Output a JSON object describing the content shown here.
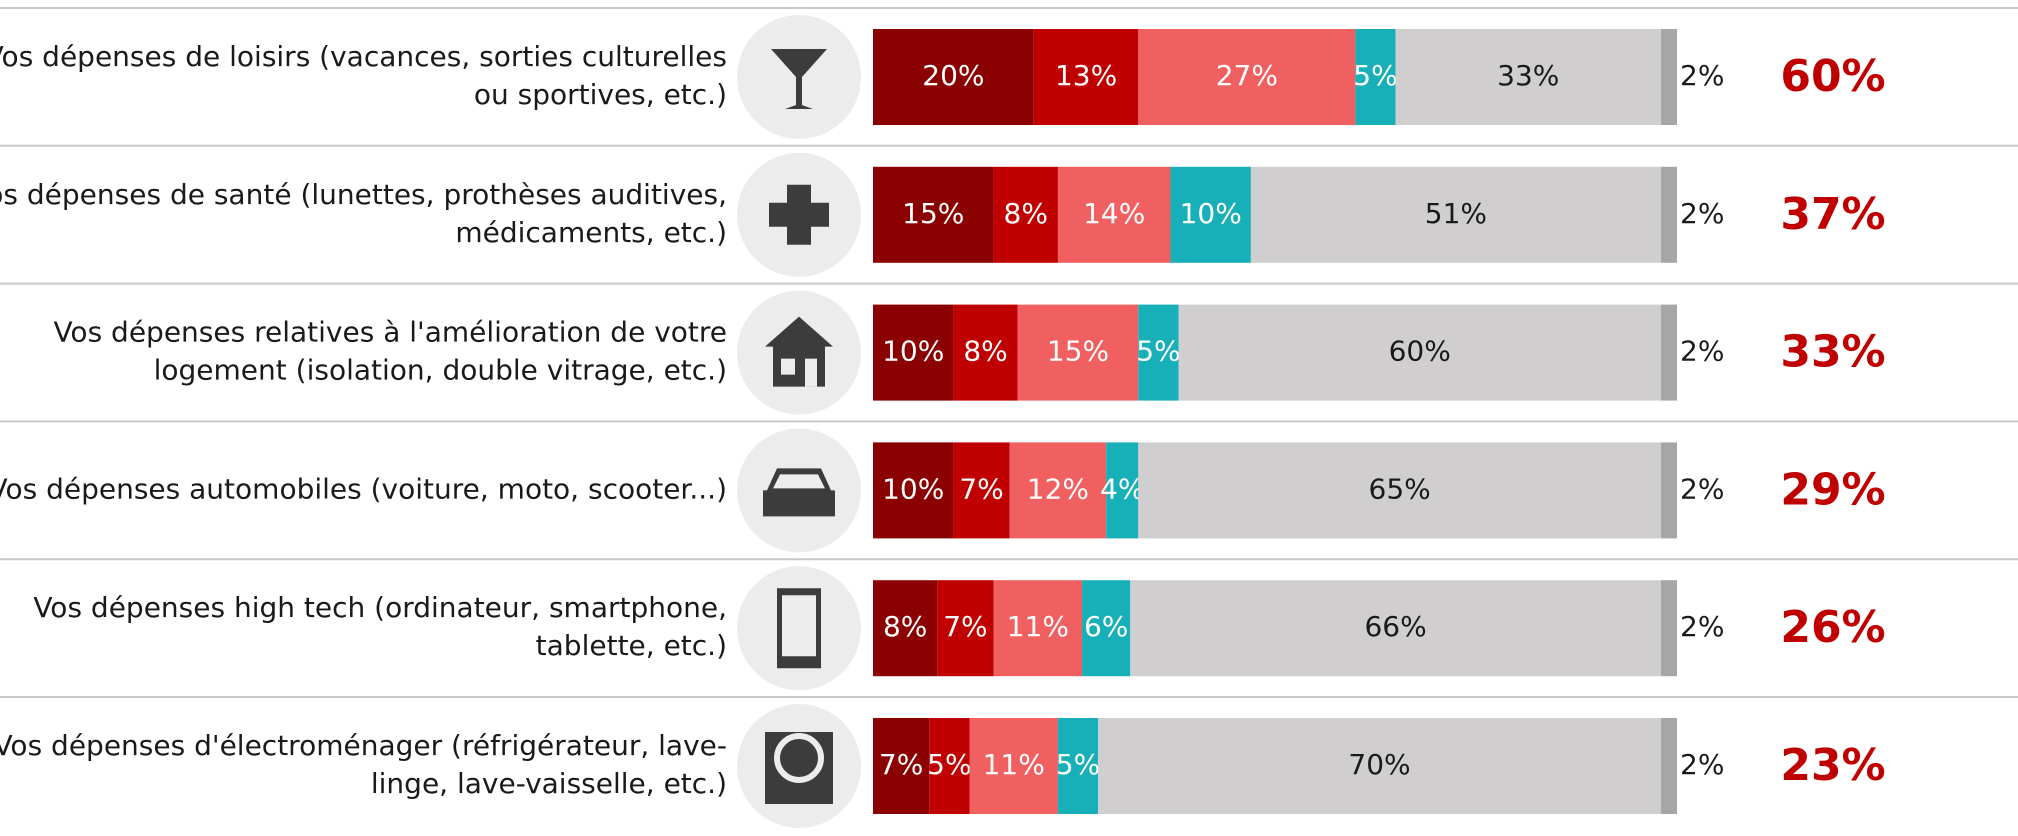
{
  "chart_data": {
    "type": "stacked-bar-horizontal",
    "categories": [
      "Vos dépenses de loisirs (vacances, sorties culturelles\nou sportives, etc.)",
      "Vos dépenses de santé (lunettes, prothèses auditives,\nmédicaments, etc.)",
      "Vos dépenses relatives à l'amélioration de votre\nlogement (isolation, double vitrage, etc.)",
      "Vos dépenses automobiles (voiture, moto, scooter...)",
      "Vos dépenses high tech (ordinateur, smartphone,\ntablette, etc.)",
      "Vos dépenses d'électroménager (réfrigérateur, lave-\nlinge, lave-vaisselle, etc.)"
    ],
    "xlim": [
      0,
      100
    ],
    "series": [
      {
        "color": "#8b0000",
        "values": [
          20,
          15,
          10,
          10,
          8,
          7
        ],
        "value_labels": [
          "20%",
          "15%",
          "10%",
          "10%",
          "8%",
          "7%"
        ]
      },
      {
        "color": "#c00000",
        "values": [
          13,
          8,
          8,
          7,
          7,
          5
        ],
        "value_labels": [
          "13%",
          "8%",
          "8%",
          "7%",
          "7%",
          "5%"
        ]
      },
      {
        "color": "#f06060",
        "values": [
          27,
          14,
          15,
          12,
          11,
          11
        ],
        "value_labels": [
          "27%",
          "14%",
          "15%",
          "12%",
          "11%",
          "11%"
        ]
      },
      {
        "color": "#17b0b8",
        "values": [
          5,
          10,
          5,
          4,
          6,
          5
        ],
        "value_labels": [
          "5%",
          "10%",
          "5%",
          "4%",
          "6%",
          "5%"
        ]
      },
      {
        "color": "#d0cece",
        "values": [
          33,
          51,
          60,
          65,
          66,
          70
        ],
        "value_labels": [
          "33%",
          "51%",
          "60%",
          "65%",
          "66%",
          "70%"
        ]
      },
      {
        "color": "#a6a6a6",
        "values": [
          2,
          2,
          2,
          2,
          2,
          2
        ],
        "value_labels": [
          "2%",
          "2%",
          "2%",
          "2%",
          "2%",
          "2%"
        ]
      }
    ],
    "totals": {
      "color": "#c00000",
      "values": [
        60,
        37,
        33,
        29,
        26,
        23
      ],
      "value_labels": [
        "60%",
        "37%",
        "33%",
        "29%",
        "26%",
        "23%"
      ]
    }
  }
}
